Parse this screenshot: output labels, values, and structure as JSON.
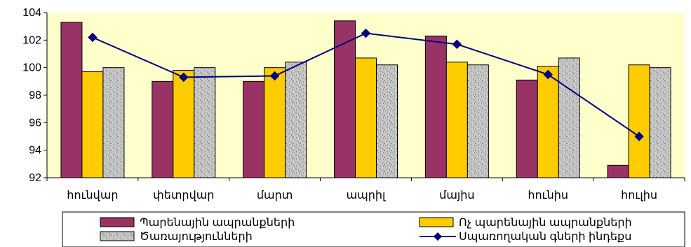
{
  "chart_data": {
    "type": "bar",
    "categories": [
      "հունվար",
      "փետրվար",
      "մարտ",
      "ապրիլ",
      "մայիս",
      "հունիս",
      "հուլիս"
    ],
    "series": [
      {
        "name": "Պարենային ապրանքների",
        "kind": "bar",
        "color": "#993366",
        "values": [
          103.3,
          99.0,
          99.0,
          103.4,
          102.3,
          99.1,
          92.9
        ]
      },
      {
        "name": "Ոչ պարենային  ապրանքների",
        "kind": "bar",
        "color": "#ffcc00",
        "values": [
          99.7,
          99.8,
          100.0,
          100.7,
          100.4,
          100.1,
          100.2
        ]
      },
      {
        "name": "Ծառայությունների",
        "kind": "bar",
        "color": "#bcbcbc",
        "pattern": "granite",
        "values": [
          100.0,
          100.0,
          100.4,
          100.2,
          100.2,
          100.7,
          100.0
        ]
      },
      {
        "name": "Սպառողական գների ինդեքս",
        "kind": "line",
        "color": "#000080",
        "marker": "diamond",
        "values": [
          102.2,
          99.3,
          99.4,
          102.5,
          101.7,
          99.5,
          95.0
        ]
      }
    ],
    "ylim": [
      92,
      104
    ],
    "yticks": [
      92,
      94,
      96,
      98,
      100,
      102,
      104
    ],
    "plot_background": "#ffffcc",
    "grid": false,
    "legend_position": "bottom"
  }
}
